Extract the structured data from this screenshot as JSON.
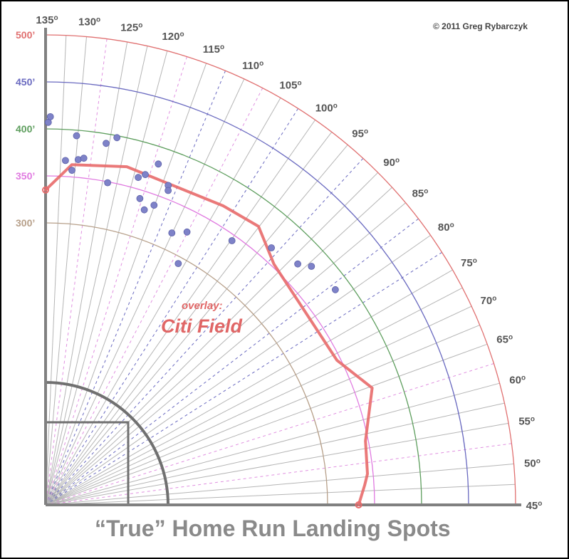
{
  "chart_data": {
    "type": "scatter",
    "coordinate_system": "polar-quadrant",
    "title": "“True” Home Run Landing Spots",
    "copyright": "© 2011 Greg Rybarczyk",
    "annotation": {
      "line1": "overlay:",
      "line2": "Citi Field"
    },
    "angle_range_deg": [
      45,
      135
    ],
    "angle_ticks": [
      {
        "deg": 45,
        "label": "45"
      },
      {
        "deg": 50,
        "label": "50"
      },
      {
        "deg": 55,
        "label": "55"
      },
      {
        "deg": 60,
        "label": "60"
      },
      {
        "deg": 65,
        "label": "65"
      },
      {
        "deg": 70,
        "label": "70"
      },
      {
        "deg": 75,
        "label": "75"
      },
      {
        "deg": 80,
        "label": "80"
      },
      {
        "deg": 85,
        "label": "85"
      },
      {
        "deg": 90,
        "label": "90"
      },
      {
        "deg": 95,
        "label": "95"
      },
      {
        "deg": 100,
        "label": "100"
      },
      {
        "deg": 105,
        "label": "105"
      },
      {
        "deg": 110,
        "label": "110"
      },
      {
        "deg": 115,
        "label": "115"
      },
      {
        "deg": 120,
        "label": "120"
      },
      {
        "deg": 125,
        "label": "125"
      },
      {
        "deg": 130,
        "label": "130"
      },
      {
        "deg": 135,
        "label": "135"
      }
    ],
    "degree_symbol": "o",
    "distance_rings": [
      {
        "distance": 300,
        "label": "300’",
        "color": "#b7a08a"
      },
      {
        "distance": 350,
        "label": "350’",
        "color": "#e07ae0"
      },
      {
        "distance": 400,
        "label": "400’",
        "color": "#5e9e5e"
      },
      {
        "distance": 450,
        "label": "450’",
        "color": "#6a6ac0"
      },
      {
        "distance": 500,
        "label": "500’",
        "color": "#e07070"
      }
    ],
    "colors": {
      "spoke": "#b5b5b5",
      "spoke_dashed_pink": "#e090e0",
      "spoke_dashed_blue": "#6a6ac0",
      "fence": "#e86a6a",
      "points": "#7e82c8",
      "infield": "#707070",
      "axis": "#808080"
    },
    "landing_points": [
      {
        "angle": 134.6,
        "distance": 407
      },
      {
        "angle": 134.3,
        "distance": 413
      },
      {
        "angle": 130.2,
        "distance": 394
      },
      {
        "angle": 131.7,
        "distance": 367
      },
      {
        "angle": 130.5,
        "distance": 357
      },
      {
        "angle": 129.6,
        "distance": 369
      },
      {
        "angle": 128.7,
        "distance": 371
      },
      {
        "angle": 125.5,
        "distance": 390
      },
      {
        "angle": 124.0,
        "distance": 398
      },
      {
        "angle": 124.1,
        "distance": 349
      },
      {
        "angle": 119.2,
        "distance": 362
      },
      {
        "angle": 118.2,
        "distance": 367
      },
      {
        "angle": 116.7,
        "distance": 382
      },
      {
        "angle": 117.9,
        "distance": 341
      },
      {
        "angle": 116.5,
        "distance": 331
      },
      {
        "angle": 115.1,
        "distance": 339
      },
      {
        "angle": 114.0,
        "distance": 364
      },
      {
        "angle": 113.7,
        "distance": 359
      },
      {
        "angle": 110.1,
        "distance": 319
      },
      {
        "angle": 107.6,
        "distance": 327
      },
      {
        "angle": 106.2,
        "distance": 293
      },
      {
        "angle": 99.8,
        "distance": 344
      },
      {
        "angle": 93.7,
        "distance": 364
      },
      {
        "angle": 88.7,
        "distance": 371
      },
      {
        "angle": 86.9,
        "distance": 380
      },
      {
        "angle": 81.6,
        "distance": 384
      }
    ],
    "fence_polyline": [
      {
        "angle": 135.0,
        "distance": 335
      },
      {
        "angle": 130.6,
        "distance": 363
      },
      {
        "angle": 121.5,
        "distance": 370
      },
      {
        "angle": 104.3,
        "distance": 370
      },
      {
        "angle": 97.6,
        "distance": 373
      },
      {
        "angle": 91.5,
        "distance": 353
      },
      {
        "angle": 71.4,
        "distance": 346
      },
      {
        "angle": 64.7,
        "distance": 369
      },
      {
        "angle": 56.3,
        "distance": 347
      },
      {
        "angle": 50.5,
        "distance": 344
      },
      {
        "angle": 48.5,
        "distance": 340
      },
      {
        "angle": 45.0,
        "distance": 333
      }
    ]
  }
}
